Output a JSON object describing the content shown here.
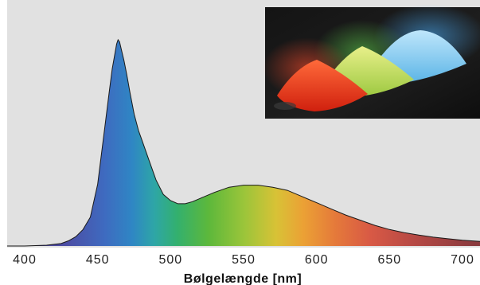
{
  "chart_data": {
    "type": "area",
    "title": "",
    "xlabel": "Bølgelængde [nm]",
    "ylabel": "",
    "xlim": [
      388,
      712
    ],
    "ylim": [
      0,
      1
    ],
    "x_ticks": [
      "400",
      "450",
      "500",
      "550",
      "600",
      "650",
      "700"
    ],
    "grid": false,
    "legend": "none",
    "background_color": "#e1e1e1",
    "outline_color": "#1a1a1a",
    "inset": {
      "position": "top-right",
      "description": "photo of red, green and blue phosphor powder piles"
    },
    "series": [
      {
        "fill": "visible-spectrum gradient",
        "x": [
          388,
          400,
          415,
          425,
          430,
          435,
          440,
          445,
          450,
          455,
          458,
          460,
          462,
          463,
          464,
          465,
          466,
          468,
          470,
          472,
          475,
          478,
          480,
          485,
          490,
          495,
          500,
          505,
          510,
          515,
          520,
          530,
          540,
          550,
          560,
          570,
          580,
          590,
          600,
          610,
          620,
          630,
          640,
          650,
          660,
          670,
          680,
          690,
          700,
          712
        ],
        "y": [
          0.0,
          0.0,
          0.004,
          0.012,
          0.025,
          0.045,
          0.08,
          0.14,
          0.3,
          0.58,
          0.75,
          0.86,
          0.94,
          0.98,
          1.0,
          0.99,
          0.96,
          0.9,
          0.83,
          0.75,
          0.64,
          0.56,
          0.52,
          0.42,
          0.32,
          0.25,
          0.22,
          0.205,
          0.205,
          0.215,
          0.23,
          0.26,
          0.285,
          0.295,
          0.295,
          0.285,
          0.27,
          0.24,
          0.21,
          0.18,
          0.15,
          0.125,
          0.1,
          0.08,
          0.065,
          0.053,
          0.043,
          0.035,
          0.028,
          0.022
        ]
      }
    ]
  }
}
